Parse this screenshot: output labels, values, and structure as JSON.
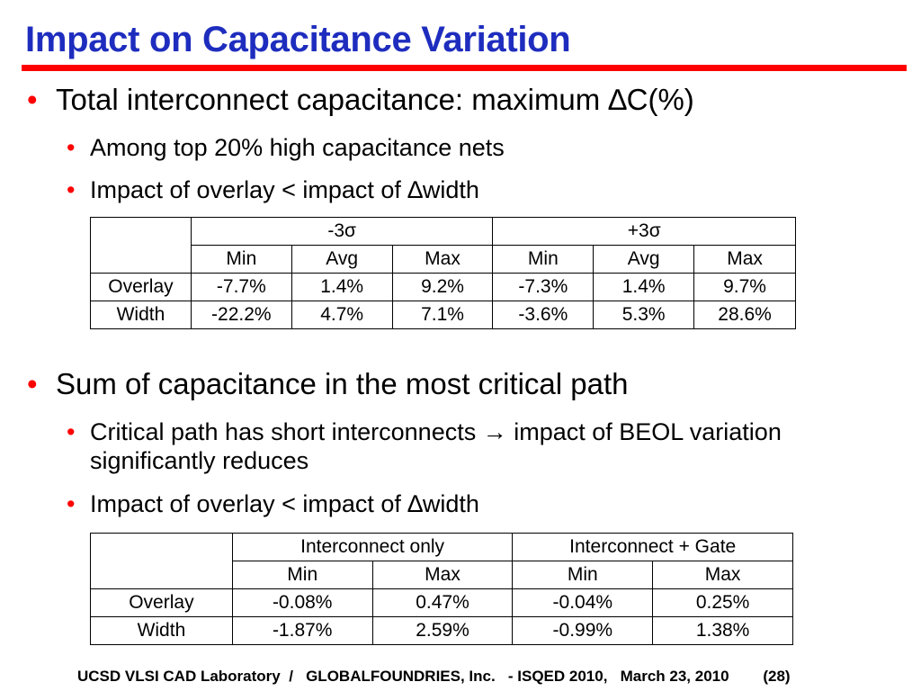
{
  "title": "Impact on Capacitance Variation",
  "section1": {
    "bullet": "Total interconnect capacitance: maximum ∆C(%)",
    "sub1": "Among top 20% high capacitance nets",
    "sub2": "Impact of overlay < impact of ∆width",
    "table": {
      "group1": "-3σ",
      "group2": "+3σ",
      "subheaders": [
        "Min",
        "Avg",
        "Max",
        "Min",
        "Avg",
        "Max"
      ],
      "rows": [
        {
          "label": "Overlay",
          "values": [
            "-7.7%",
            "1.4%",
            "9.2%",
            "-7.3%",
            "1.4%",
            "9.7%"
          ]
        },
        {
          "label": "Width",
          "values": [
            "-22.2%",
            "4.7%",
            "7.1%",
            "-3.6%",
            "5.3%",
            "28.6%"
          ]
        }
      ]
    }
  },
  "section2": {
    "bullet": "Sum of capacitance in the most critical path",
    "sub1": "Critical path has short interconnects → impact of BEOL variation significantly reduces",
    "sub2": "Impact of overlay < impact of ∆width",
    "table": {
      "group1": "Interconnect only",
      "group2": "Interconnect + Gate",
      "subheaders": [
        "Min",
        "Max",
        "Min",
        "Max"
      ],
      "rows": [
        {
          "label": "Overlay",
          "values": [
            "-0.08%",
            "0.47%",
            "-0.04%",
            "0.25%"
          ]
        },
        {
          "label": "Width",
          "values": [
            "-1.87%",
            "2.59%",
            "-0.99%",
            "1.38%"
          ]
        }
      ]
    }
  },
  "footer": "UCSD VLSI CAD Laboratory  /   GLOBALFOUNDRIES, Inc.   - ISQED 2010,   March 23, 2010        (28)",
  "colors": {
    "title": "#1e2dbe",
    "rule": "#ff0000",
    "bullet": "#ff0000"
  }
}
